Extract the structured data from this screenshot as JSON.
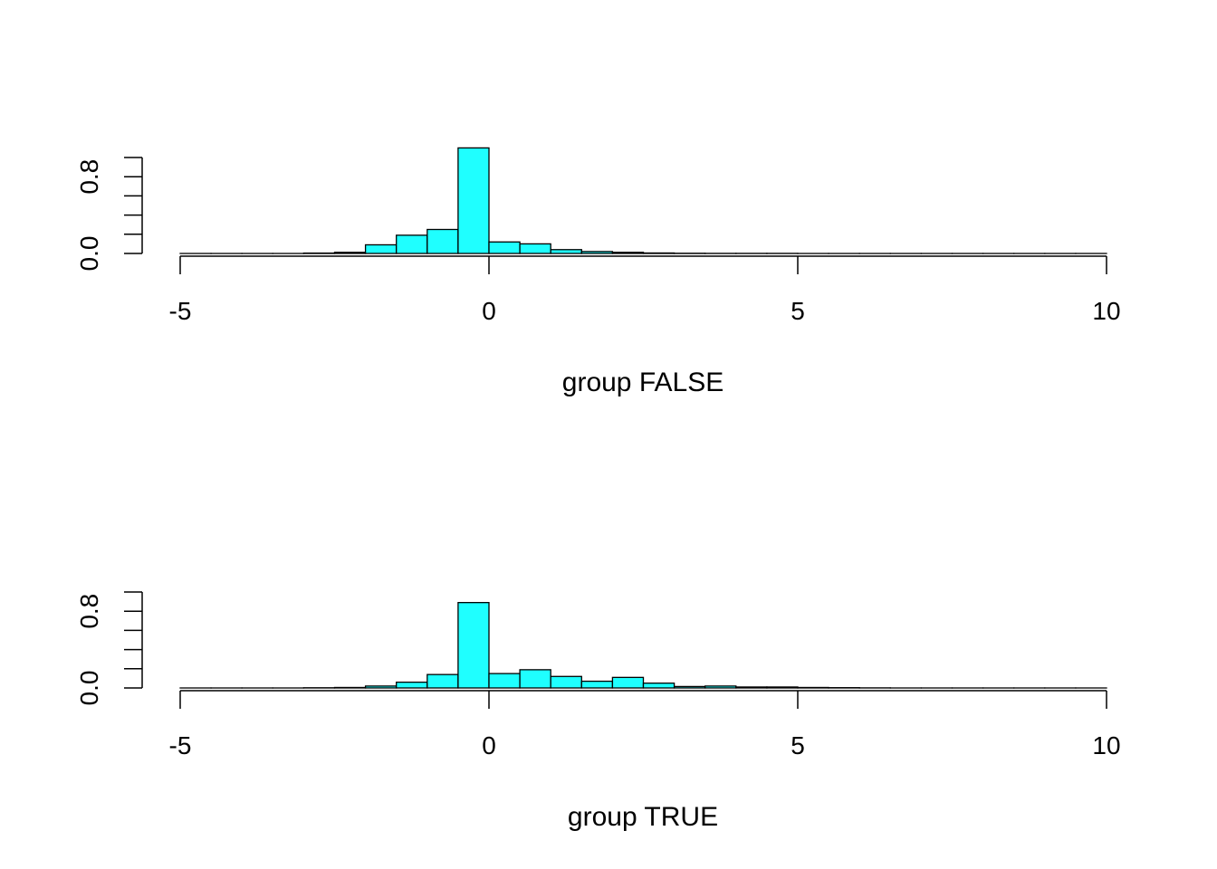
{
  "chart_data": [
    {
      "type": "bar",
      "xlabel": "group FALSE",
      "ylabel": "",
      "title": "",
      "xlim": [
        -5,
        10
      ],
      "ylim": [
        0,
        1.0
      ],
      "x_ticks": [
        "-5",
        "0",
        "5",
        "10"
      ],
      "y_ticks": [
        "0.0",
        "0.8"
      ],
      "bin_width": 0.5,
      "bins_start": -5,
      "values": [
        0,
        0,
        0,
        0,
        0.004,
        0.012,
        0.09,
        0.19,
        0.25,
        1.1,
        0.12,
        0.1,
        0.04,
        0.02,
        0.012,
        0.005,
        0.002,
        0.001,
        0.001,
        0.001,
        0,
        0,
        0,
        0,
        0,
        0,
        0,
        0,
        0,
        0
      ],
      "bar_color": "#1FFFFF",
      "grid": false
    },
    {
      "type": "bar",
      "xlabel": "group TRUE",
      "ylabel": "",
      "title": "",
      "xlim": [
        -5,
        10
      ],
      "ylim": [
        0,
        1.0
      ],
      "x_ticks": [
        "-5",
        "0",
        "5",
        "10"
      ],
      "y_ticks": [
        "0.0",
        "0.8"
      ],
      "bin_width": 0.5,
      "bins_start": -5,
      "values": [
        0,
        0,
        0,
        0,
        0.002,
        0.005,
        0.02,
        0.06,
        0.14,
        0.89,
        0.15,
        0.19,
        0.12,
        0.07,
        0.11,
        0.05,
        0.015,
        0.02,
        0.01,
        0.01,
        0.005,
        0.003,
        0.001,
        0,
        0,
        0,
        0,
        0,
        0,
        0
      ],
      "bar_color": "#1FFFFF",
      "grid": false
    }
  ]
}
